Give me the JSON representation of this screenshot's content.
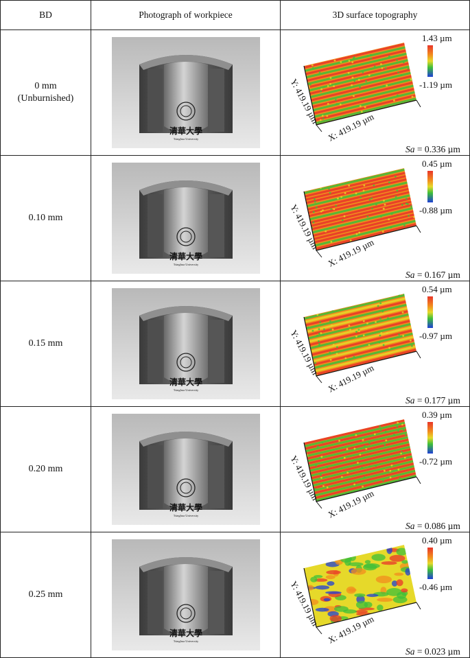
{
  "headers": {
    "bd": "BD",
    "photo": "Photograph of workpiece",
    "topo": "3D surface topography"
  },
  "photo_text": {
    "logo_cn": "清華大學",
    "logo_en": "Tsinghua University"
  },
  "axis_labels": {
    "x": "X: 419.19 µm",
    "y": "Y: 419.19 µm"
  },
  "rows": [
    {
      "bd_line1": "0 mm",
      "bd_line2": "(Unburnished)",
      "max": "1.43 µm",
      "min": "-1.19 µm",
      "sa_label": "Sa",
      "sa_value": " = 0.336 µm",
      "pattern": "ridges-strong"
    },
    {
      "bd_line1": "0.10 mm",
      "bd_line2": "",
      "max": "0.45 µm",
      "min": "-0.88 µm",
      "sa_label": "Sa",
      "sa_value": " = 0.167 µm",
      "pattern": "ridges-medium"
    },
    {
      "bd_line1": "0.15 mm",
      "bd_line2": "",
      "max": "0.54 µm",
      "min": "-0.97 µm",
      "sa_label": "Sa",
      "sa_value": " = 0.177 µm",
      "pattern": "ridges-mixed"
    },
    {
      "bd_line1": "0.20 mm",
      "bd_line2": "",
      "max": "0.39 µm",
      "min": "-0.72 µm",
      "sa_label": "Sa",
      "sa_value": " = 0.086 µm",
      "pattern": "ridges-fine"
    },
    {
      "bd_line1": "0.25 mm",
      "bd_line2": "",
      "max": "0.40 µm",
      "min": "-0.46 µm",
      "sa_label": "Sa",
      "sa_value": " = 0.023 µm",
      "pattern": "smooth-blotch"
    }
  ],
  "colors": {
    "red": "#e8362a",
    "orange": "#f28c1e",
    "yellow": "#e6d92a",
    "green": "#3fbf3a",
    "blue": "#1f3fd6"
  }
}
